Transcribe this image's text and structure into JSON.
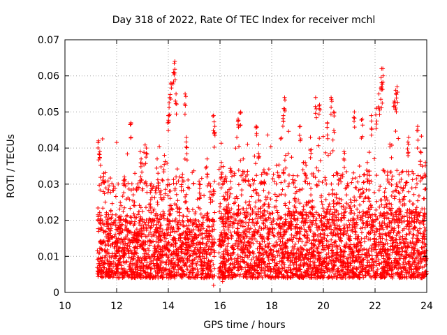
{
  "chart_data": {
    "type": "scatter",
    "title": "Day 318 of 2022, Rate Of TEC Index for receiver mchl",
    "xlabel": "GPS time / hours",
    "ylabel": "ROTI / TECUs",
    "xlim": [
      10,
      24
    ],
    "ylim": [
      0,
      0.07
    ],
    "xticks": [
      10,
      12,
      14,
      16,
      18,
      20,
      22,
      24
    ],
    "xtick_labels": [
      "10",
      "12",
      "14",
      "16",
      "18",
      "20",
      "22",
      "24"
    ],
    "yticks": [
      0,
      0.01,
      0.02,
      0.03,
      0.04,
      0.05,
      0.06,
      0.07
    ],
    "ytick_labels": [
      "0",
      "0.01",
      "0.02",
      "0.03",
      "0.04",
      "0.05",
      "0.06",
      "0.07"
    ],
    "grid": true,
    "marker": "+",
    "color": "#ff0000",
    "series": [
      {
        "name": "ROTI",
        "description": "dense ROTI samples from ~11.25 to 24 h; bulk 0.005-0.02, data gap near 15.8 h, tail values up to ~0.064",
        "segments": [
          {
            "x_start": 11.25,
            "x_end": 15.8,
            "typical_min": 0.004,
            "typical_max": 0.02
          },
          {
            "x_start": 15.95,
            "x_end": 24.0,
            "typical_min": 0.004,
            "typical_max": 0.022
          }
        ],
        "peaks": [
          {
            "x": 11.3,
            "y": 0.042
          },
          {
            "x": 11.35,
            "y": 0.039
          },
          {
            "x": 11.5,
            "y": 0.033
          },
          {
            "x": 12.55,
            "y": 0.047
          },
          {
            "x": 12.95,
            "y": 0.037
          },
          {
            "x": 13.15,
            "y": 0.04
          },
          {
            "x": 13.6,
            "y": 0.033
          },
          {
            "x": 14.0,
            "y": 0.049
          },
          {
            "x": 14.05,
            "y": 0.054
          },
          {
            "x": 14.1,
            "y": 0.058
          },
          {
            "x": 14.2,
            "y": 0.061
          },
          {
            "x": 14.25,
            "y": 0.064
          },
          {
            "x": 14.3,
            "y": 0.055
          },
          {
            "x": 14.65,
            "y": 0.055
          },
          {
            "x": 14.7,
            "y": 0.043
          },
          {
            "x": 15.5,
            "y": 0.037
          },
          {
            "x": 15.75,
            "y": 0.049
          },
          {
            "x": 15.8,
            "y": 0.046
          },
          {
            "x": 16.05,
            "y": 0.036
          },
          {
            "x": 16.7,
            "y": 0.048
          },
          {
            "x": 16.8,
            "y": 0.05
          },
          {
            "x": 17.4,
            "y": 0.046
          },
          {
            "x": 17.5,
            "y": 0.041
          },
          {
            "x": 18.5,
            "y": 0.054
          },
          {
            "x": 18.45,
            "y": 0.049
          },
          {
            "x": 19.1,
            "y": 0.046
          },
          {
            "x": 19.5,
            "y": 0.043
          },
          {
            "x": 19.7,
            "y": 0.054
          },
          {
            "x": 19.85,
            "y": 0.052
          },
          {
            "x": 20.15,
            "y": 0.047
          },
          {
            "x": 20.3,
            "y": 0.054
          },
          {
            "x": 20.4,
            "y": 0.05
          },
          {
            "x": 21.2,
            "y": 0.05
          },
          {
            "x": 21.5,
            "y": 0.048
          },
          {
            "x": 21.85,
            "y": 0.049
          },
          {
            "x": 22.05,
            "y": 0.051
          },
          {
            "x": 22.15,
            "y": 0.055
          },
          {
            "x": 22.25,
            "y": 0.062
          },
          {
            "x": 22.3,
            "y": 0.062
          },
          {
            "x": 22.25,
            "y": 0.057
          },
          {
            "x": 22.75,
            "y": 0.053
          },
          {
            "x": 22.8,
            "y": 0.056
          },
          {
            "x": 22.85,
            "y": 0.057
          },
          {
            "x": 23.3,
            "y": 0.043
          },
          {
            "x": 23.65,
            "y": 0.046
          },
          {
            "x": 23.75,
            "y": 0.039
          },
          {
            "x": 23.95,
            "y": 0.036
          },
          {
            "x": 12.3,
            "y": 0.032
          },
          {
            "x": 13.85,
            "y": 0.038
          },
          {
            "x": 16.9,
            "y": 0.037
          },
          {
            "x": 17.7,
            "y": 0.034
          },
          {
            "x": 18.9,
            "y": 0.031
          },
          {
            "x": 20.8,
            "y": 0.039
          },
          {
            "x": 21.7,
            "y": 0.036
          },
          {
            "x": 23.1,
            "y": 0.029
          },
          {
            "x": 15.2,
            "y": 0.03
          },
          {
            "x": 19.3,
            "y": 0.036
          }
        ],
        "troughs": [
          {
            "x": 15.75,
            "y": 0.002
          },
          {
            "x": 16.1,
            "y": 0.003
          },
          {
            "x": 14.1,
            "y": 0.004
          },
          {
            "x": 22.0,
            "y": 0.004
          },
          {
            "x": 23.8,
            "y": 0.004
          }
        ]
      }
    ]
  }
}
